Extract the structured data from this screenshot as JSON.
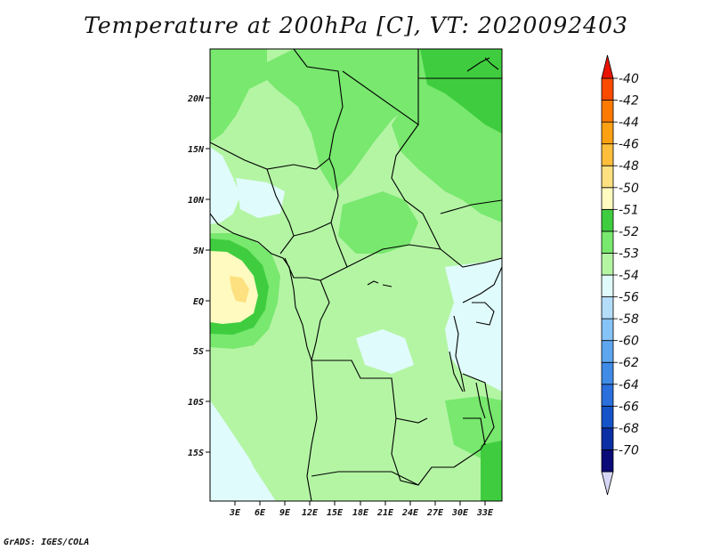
{
  "title": "Temperature at 200hPa [C], VT: 2020092403",
  "credit": "GrADS: IGES/COLA",
  "map": {
    "lat_labels": [
      "20N",
      "15N",
      "10N",
      "5N",
      "EQ",
      "5S",
      "10S",
      "15S"
    ],
    "lon_labels": [
      "3E",
      "6E",
      "9E",
      "12E",
      "15E",
      "18E",
      "21E",
      "24E",
      "27E",
      "30E",
      "33E"
    ]
  },
  "colorbar": {
    "labels": [
      "-40",
      "-42",
      "-44",
      "-46",
      "-48",
      "-50",
      "-51",
      "-52",
      "-53",
      "-54",
      "-56",
      "-58",
      "-60",
      "-62",
      "-64",
      "-66",
      "-68",
      "-70"
    ],
    "colors": [
      "#d7d7f5",
      "#0a0a78",
      "#0c2fa6",
      "#1553c8",
      "#2a6fdc",
      "#3f8be6",
      "#5ea6ef",
      "#86c3f6",
      "#b4ddfa",
      "#e0fbfc",
      "#b4f5a4",
      "#78e86e",
      "#3fcd3f",
      "#fffac0",
      "#fde080",
      "#fdbe3c",
      "#fda012",
      "#fd7a00",
      "#fc4a00",
      "#e81400"
    ]
  },
  "field_colors": {
    "c54": "#e0fbfc",
    "c53": "#b4f5a4",
    "c52": "#78e86e",
    "c51": "#3fcd3f",
    "c50": "#fffac0",
    "c48": "#fde080"
  }
}
